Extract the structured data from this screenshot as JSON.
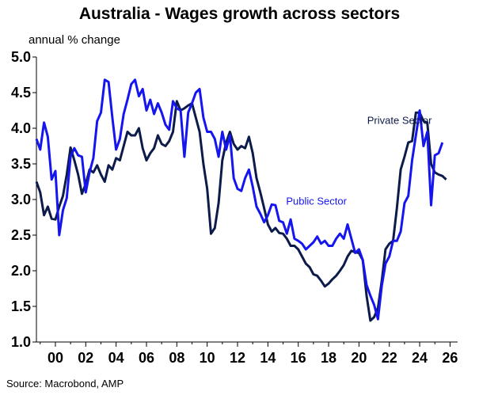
{
  "chart_data": {
    "type": "line",
    "title": "Australia - Wages growth across sectors",
    "subtitle": "annual % change",
    "source": "Source: Macrobond, AMP",
    "xlabel": "",
    "ylabel": "",
    "xlim": [
      1998.75,
      2026.5
    ],
    "ylim": [
      1.0,
      5.0
    ],
    "y_ticks": [
      "1.0",
      "1.5",
      "2.0",
      "2.5",
      "3.0",
      "3.5",
      "4.0",
      "4.5",
      "5.0"
    ],
    "x_ticks": [
      {
        "x": 2000,
        "label": "00"
      },
      {
        "x": 2002,
        "label": "02"
      },
      {
        "x": 2004,
        "label": "04"
      },
      {
        "x": 2006,
        "label": "06"
      },
      {
        "x": 2008,
        "label": "08"
      },
      {
        "x": 2010,
        "label": "10"
      },
      {
        "x": 2012,
        "label": "12"
      },
      {
        "x": 2014,
        "label": "14"
      },
      {
        "x": 2016,
        "label": "16"
      },
      {
        "x": 2018,
        "label": "18"
      },
      {
        "x": 2020,
        "label": "20"
      },
      {
        "x": 2022,
        "label": "22"
      },
      {
        "x": 2024,
        "label": "24"
      },
      {
        "x": 2026,
        "label": "26"
      }
    ],
    "grid": false,
    "legend": "none",
    "series": [
      {
        "name": "Private Sector",
        "color": "#0d1b4a",
        "points": [
          [
            1998.75,
            3.25
          ],
          [
            1999.0,
            3.1
          ],
          [
            1999.25,
            2.78
          ],
          [
            1999.5,
            2.9
          ],
          [
            1999.75,
            2.73
          ],
          [
            2000.0,
            2.72
          ],
          [
            2000.25,
            2.9
          ],
          [
            2000.5,
            3.05
          ],
          [
            2000.75,
            3.35
          ],
          [
            2001.0,
            3.73
          ],
          [
            2001.25,
            3.55
          ],
          [
            2001.5,
            3.35
          ],
          [
            2001.75,
            3.08
          ],
          [
            2002.0,
            3.22
          ],
          [
            2002.25,
            3.42
          ],
          [
            2002.5,
            3.38
          ],
          [
            2002.75,
            3.48
          ],
          [
            2003.0,
            3.35
          ],
          [
            2003.25,
            3.25
          ],
          [
            2003.5,
            3.48
          ],
          [
            2003.75,
            3.42
          ],
          [
            2004.0,
            3.58
          ],
          [
            2004.25,
            3.55
          ],
          [
            2004.5,
            3.75
          ],
          [
            2004.75,
            3.95
          ],
          [
            2005.0,
            3.9
          ],
          [
            2005.25,
            3.9
          ],
          [
            2005.5,
            4.0
          ],
          [
            2005.75,
            3.72
          ],
          [
            2006.0,
            3.55
          ],
          [
            2006.25,
            3.65
          ],
          [
            2006.5,
            3.72
          ],
          [
            2006.75,
            3.9
          ],
          [
            2007.0,
            3.78
          ],
          [
            2007.25,
            3.75
          ],
          [
            2007.5,
            3.82
          ],
          [
            2007.75,
            3.95
          ],
          [
            2008.0,
            4.38
          ],
          [
            2008.25,
            4.25
          ],
          [
            2008.5,
            4.28
          ],
          [
            2008.75,
            4.32
          ],
          [
            2009.0,
            4.35
          ],
          [
            2009.25,
            4.15
          ],
          [
            2009.5,
            3.95
          ],
          [
            2009.75,
            3.5
          ],
          [
            2010.0,
            3.15
          ],
          [
            2010.25,
            2.52
          ],
          [
            2010.5,
            2.6
          ],
          [
            2010.75,
            2.95
          ],
          [
            2011.0,
            3.55
          ],
          [
            2011.25,
            3.8
          ],
          [
            2011.5,
            3.95
          ],
          [
            2011.75,
            3.78
          ],
          [
            2012.0,
            3.7
          ],
          [
            2012.25,
            3.75
          ],
          [
            2012.5,
            3.72
          ],
          [
            2012.75,
            3.88
          ],
          [
            2013.0,
            3.65
          ],
          [
            2013.25,
            3.3
          ],
          [
            2013.5,
            3.1
          ],
          [
            2013.75,
            2.88
          ],
          [
            2014.0,
            2.65
          ],
          [
            2014.25,
            2.55
          ],
          [
            2014.5,
            2.6
          ],
          [
            2014.75,
            2.53
          ],
          [
            2015.0,
            2.52
          ],
          [
            2015.25,
            2.45
          ],
          [
            2015.5,
            2.35
          ],
          [
            2015.75,
            2.35
          ],
          [
            2016.0,
            2.3
          ],
          [
            2016.25,
            2.2
          ],
          [
            2016.5,
            2.1
          ],
          [
            2016.75,
            2.05
          ],
          [
            2017.0,
            1.95
          ],
          [
            2017.25,
            1.93
          ],
          [
            2017.5,
            1.86
          ],
          [
            2017.75,
            1.78
          ],
          [
            2018.0,
            1.82
          ],
          [
            2018.25,
            1.88
          ],
          [
            2018.5,
            1.93
          ],
          [
            2018.75,
            2.0
          ],
          [
            2019.0,
            2.08
          ],
          [
            2019.25,
            2.2
          ],
          [
            2019.5,
            2.28
          ],
          [
            2019.75,
            2.26
          ],
          [
            2020.0,
            2.25
          ],
          [
            2020.25,
            2.15
          ],
          [
            2020.5,
            1.65
          ],
          [
            2020.75,
            1.3
          ],
          [
            2021.0,
            1.35
          ],
          [
            2021.25,
            1.48
          ],
          [
            2021.5,
            1.85
          ],
          [
            2021.75,
            2.3
          ],
          [
            2022.0,
            2.38
          ],
          [
            2022.25,
            2.42
          ],
          [
            2022.5,
            2.88
          ],
          [
            2022.75,
            3.42
          ],
          [
            2023.0,
            3.6
          ],
          [
            2023.25,
            3.8
          ],
          [
            2023.5,
            3.82
          ],
          [
            2023.75,
            4.22
          ],
          [
            2024.0,
            4.22
          ],
          [
            2024.25,
            4.1
          ],
          [
            2024.5,
            4.08
          ],
          [
            2024.75,
            3.5
          ],
          [
            2025.0,
            3.38
          ],
          [
            2025.25,
            3.35
          ],
          [
            2025.5,
            3.33
          ],
          [
            2025.75,
            3.28
          ]
        ]
      },
      {
        "name": "Public Sector",
        "color": "#1515f0",
        "points": [
          [
            1998.75,
            3.85
          ],
          [
            1999.0,
            3.7
          ],
          [
            1999.25,
            4.08
          ],
          [
            1999.5,
            3.88
          ],
          [
            1999.75,
            3.28
          ],
          [
            2000.0,
            3.4
          ],
          [
            2000.25,
            2.5
          ],
          [
            2000.5,
            2.85
          ],
          [
            2000.75,
            3.02
          ],
          [
            2001.0,
            3.6
          ],
          [
            2001.25,
            3.72
          ],
          [
            2001.5,
            3.62
          ],
          [
            2001.75,
            3.6
          ],
          [
            2002.0,
            3.1
          ],
          [
            2002.25,
            3.38
          ],
          [
            2002.5,
            3.58
          ],
          [
            2002.75,
            4.1
          ],
          [
            2003.0,
            4.22
          ],
          [
            2003.25,
            4.68
          ],
          [
            2003.5,
            4.65
          ],
          [
            2003.75,
            4.15
          ],
          [
            2004.0,
            3.7
          ],
          [
            2004.25,
            3.85
          ],
          [
            2004.5,
            4.2
          ],
          [
            2004.75,
            4.4
          ],
          [
            2005.0,
            4.62
          ],
          [
            2005.25,
            4.68
          ],
          [
            2005.5,
            4.45
          ],
          [
            2005.75,
            4.55
          ],
          [
            2006.0,
            4.25
          ],
          [
            2006.25,
            4.4
          ],
          [
            2006.5,
            4.2
          ],
          [
            2006.75,
            4.35
          ],
          [
            2007.0,
            4.22
          ],
          [
            2007.25,
            4.05
          ],
          [
            2007.5,
            3.98
          ],
          [
            2007.75,
            4.38
          ],
          [
            2008.0,
            4.28
          ],
          [
            2008.25,
            4.25
          ],
          [
            2008.5,
            3.6
          ],
          [
            2008.75,
            4.22
          ],
          [
            2009.0,
            4.35
          ],
          [
            2009.25,
            4.5
          ],
          [
            2009.5,
            4.55
          ],
          [
            2009.75,
            4.15
          ],
          [
            2010.0,
            3.95
          ],
          [
            2010.25,
            3.95
          ],
          [
            2010.5,
            3.85
          ],
          [
            2010.75,
            3.6
          ],
          [
            2011.0,
            3.95
          ],
          [
            2011.25,
            3.7
          ],
          [
            2011.5,
            3.9
          ],
          [
            2011.75,
            3.3
          ],
          [
            2012.0,
            3.15
          ],
          [
            2012.25,
            3.12
          ],
          [
            2012.5,
            3.3
          ],
          [
            2012.75,
            3.42
          ],
          [
            2013.0,
            3.18
          ],
          [
            2013.25,
            2.9
          ],
          [
            2013.5,
            2.8
          ],
          [
            2013.75,
            2.68
          ],
          [
            2014.0,
            2.78
          ],
          [
            2014.25,
            2.93
          ],
          [
            2014.5,
            2.92
          ],
          [
            2014.75,
            2.7
          ],
          [
            2015.0,
            2.68
          ],
          [
            2015.25,
            2.52
          ],
          [
            2015.5,
            2.72
          ],
          [
            2015.75,
            2.45
          ],
          [
            2016.0,
            2.42
          ],
          [
            2016.25,
            2.38
          ],
          [
            2016.5,
            2.3
          ],
          [
            2016.75,
            2.35
          ],
          [
            2017.0,
            2.4
          ],
          [
            2017.25,
            2.48
          ],
          [
            2017.5,
            2.38
          ],
          [
            2017.75,
            2.42
          ],
          [
            2018.0,
            2.35
          ],
          [
            2018.25,
            2.35
          ],
          [
            2018.5,
            2.45
          ],
          [
            2018.75,
            2.52
          ],
          [
            2019.0,
            2.45
          ],
          [
            2019.25,
            2.65
          ],
          [
            2019.5,
            2.45
          ],
          [
            2019.75,
            2.25
          ],
          [
            2020.0,
            2.3
          ],
          [
            2020.25,
            2.15
          ],
          [
            2020.5,
            1.8
          ],
          [
            2020.75,
            1.65
          ],
          [
            2021.0,
            1.52
          ],
          [
            2021.25,
            1.32
          ],
          [
            2021.5,
            1.78
          ],
          [
            2021.75,
            2.1
          ],
          [
            2022.0,
            2.2
          ],
          [
            2022.25,
            2.42
          ],
          [
            2022.5,
            2.42
          ],
          [
            2022.75,
            2.55
          ],
          [
            2023.0,
            2.95
          ],
          [
            2023.25,
            3.05
          ],
          [
            2023.5,
            3.55
          ],
          [
            2023.75,
            3.9
          ],
          [
            2024.0,
            4.25
          ],
          [
            2024.25,
            3.75
          ],
          [
            2024.5,
            3.95
          ],
          [
            2024.75,
            2.92
          ],
          [
            2025.0,
            3.62
          ],
          [
            2025.25,
            3.65
          ],
          [
            2025.5,
            3.8
          ]
        ]
      }
    ],
    "annotations": [
      {
        "text": "Private Sector",
        "x": 2024.8,
        "y": 4.06,
        "anchor": "end",
        "color": "#0d1b4a"
      },
      {
        "text": "Public Sector",
        "x": 2015.2,
        "y": 2.93,
        "anchor": "start",
        "color": "#1515f0"
      }
    ]
  }
}
